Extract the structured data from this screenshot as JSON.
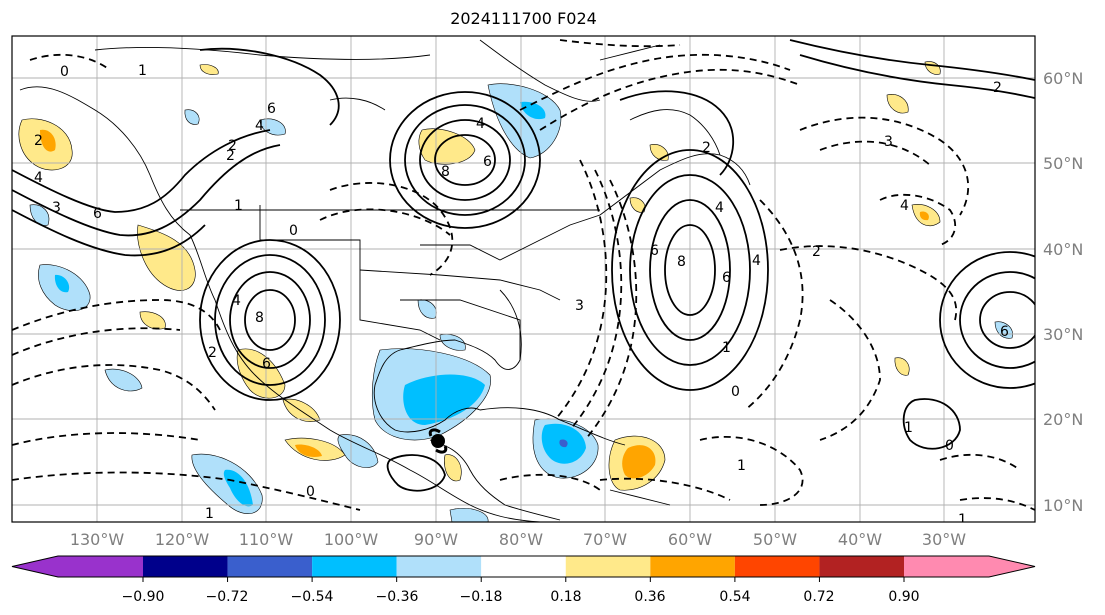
{
  "title": "2024111700 F024",
  "map": {
    "lon_ticks": [
      "130°W",
      "120°W",
      "110°W",
      "100°W",
      "90°W",
      "80°W",
      "70°W",
      "60°W",
      "50°W",
      "40°W",
      "30°W"
    ],
    "lat_ticks": [
      "60°N",
      "50°N",
      "40°N",
      "30°N",
      "20°N",
      "10°N"
    ],
    "extent": {
      "lon_min": -140,
      "lon_max": -19,
      "lat_min": 8,
      "lat_max": 65
    },
    "grid": true,
    "contour_labels": [
      "0",
      "1",
      "2",
      "3",
      "4",
      "6",
      "8",
      "6",
      "4",
      "2",
      "0",
      "1",
      "2",
      "3",
      "4",
      "6",
      "8",
      "6",
      "4",
      "2",
      "1",
      "0",
      "2",
      "4",
      "6",
      "8",
      "6",
      "4",
      "2",
      "1",
      "0",
      "1",
      "2",
      "3",
      "4",
      "6",
      "1",
      "0",
      "1"
    ]
  },
  "colorbar": {
    "ticks": [
      "−0.90",
      "−0.72",
      "−0.54",
      "−0.36",
      "−0.18",
      "0.18",
      "0.36",
      "0.54",
      "0.72",
      "0.90"
    ],
    "colors": [
      "#9932cc",
      "#00008b",
      "#3a5fcd",
      "#00bfff",
      "#b0e0fa",
      "#ffffff",
      "#ffe98a",
      "#ffa500",
      "#ff4500",
      "#b22222",
      "#ff8ab0"
    ],
    "extend": "both"
  }
}
